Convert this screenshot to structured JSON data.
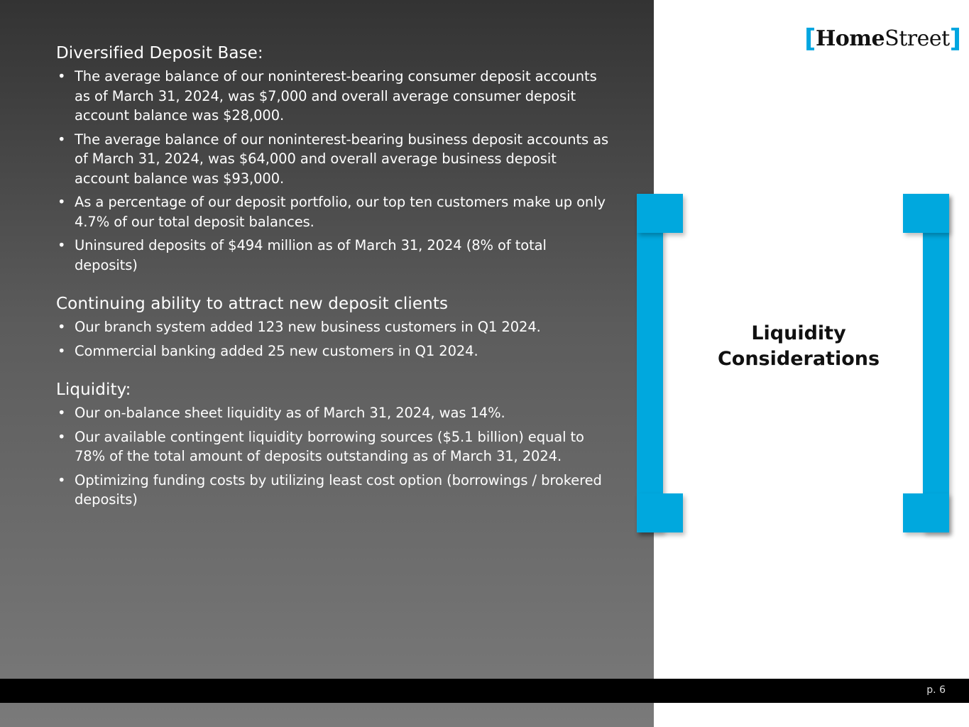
{
  "logo": {
    "text": "HomeStreet",
    "bracket_open": "[",
    "part1": "Home",
    "part2": "Street",
    "bracket_close": "]"
  },
  "sections": [
    {
      "heading": "Diversified Deposit Base:",
      "bullets": [
        "The average balance of our noninterest-bearing consumer deposit accounts as of March 31, 2024, was $7,000 and overall average consumer deposit account balance was $28,000.",
        "The average balance of our noninterest-bearing business deposit accounts as of March 31, 2024, was $64,000 and overall average business deposit account balance was $93,000.",
        "As a percentage of our deposit portfolio, our top ten customers make up only 4.7% of our total deposit balances.",
        "Uninsured deposits of $494 million as of March 31, 2024 (8% of total deposits)"
      ]
    },
    {
      "heading": "Continuing ability to attract new deposit clients",
      "bullets": [
        "Our branch system added 123 new business customers in Q1 2024.",
        "Commercial banking added 25 new customers in Q1 2024."
      ]
    },
    {
      "heading": "Liquidity:",
      "bullets": [
        "Our on-balance sheet liquidity as of March 31, 2024, was 14%.",
        "Our available contingent liquidity borrowing sources ($5.1 billion) equal to 78% of the total amount of deposits outstanding as of March 31, 2024.",
        "Optimizing funding costs by utilizing least cost option (borrowings / brokered deposits)"
      ]
    }
  ],
  "bullet_glyph": "•",
  "side_title": {
    "line1": "Liquidity",
    "line2": "Considerations"
  },
  "footer": {
    "page": "p. 6"
  },
  "colors": {
    "accent": "#00a8de",
    "footer": "#000000"
  }
}
